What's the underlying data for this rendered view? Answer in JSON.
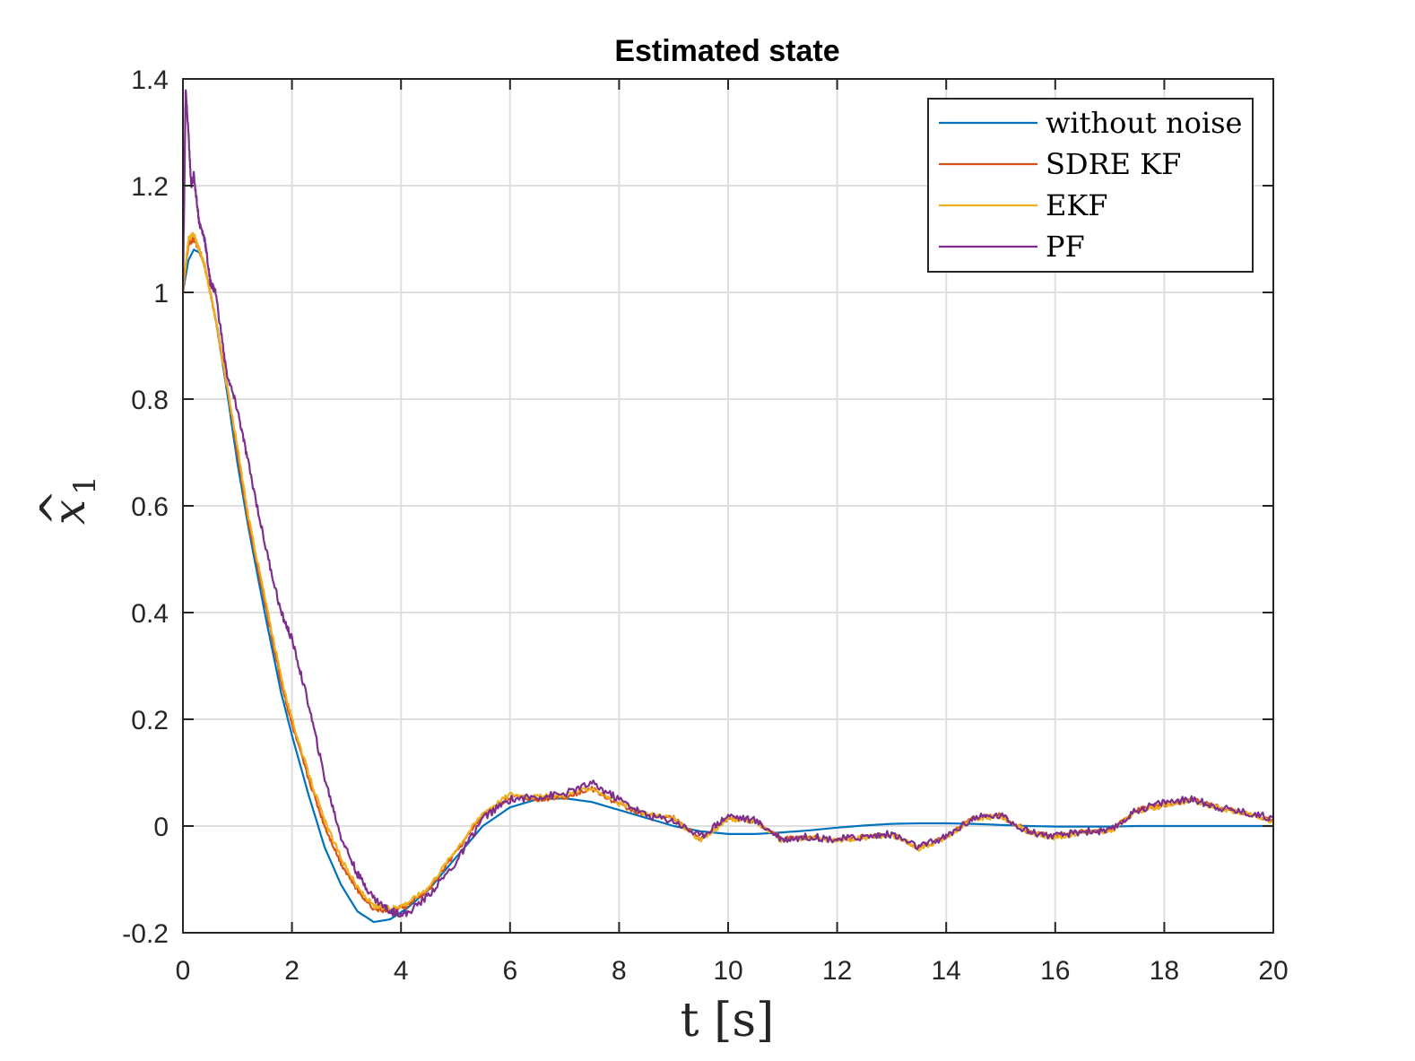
{
  "chart_data": {
    "type": "line",
    "title": "Estimated state",
    "xlabel": "t [s]",
    "ylabel_main": "x",
    "ylabel_hat": "^",
    "ylabel_sub": "1",
    "xlim": [
      0,
      20
    ],
    "ylim": [
      -0.2,
      1.4
    ],
    "xticks": [
      "0",
      "2",
      "4",
      "6",
      "8",
      "10",
      "12",
      "14",
      "16",
      "18",
      "20"
    ],
    "yticks": [
      "-0.2",
      "0",
      "0.2",
      "0.4",
      "0.6",
      "0.8",
      "1",
      "1.2",
      "1.4"
    ],
    "grid": true,
    "legend_position": "top-right",
    "series": [
      {
        "name": "without noise",
        "color": "#0072BD",
        "x": [
          0,
          0.1,
          0.2,
          0.3,
          0.4,
          0.5,
          0.6,
          0.8,
          1.0,
          1.2,
          1.5,
          1.8,
          2.0,
          2.3,
          2.6,
          2.9,
          3.2,
          3.5,
          3.8,
          4.1,
          4.5,
          5.0,
          5.5,
          6.0,
          6.5,
          7.0,
          7.5,
          8.0,
          8.5,
          9.0,
          9.5,
          10.0,
          10.5,
          11.0,
          11.5,
          12.0,
          12.5,
          13.0,
          13.5,
          14.0,
          14.5,
          15.0,
          15.5,
          16.0,
          16.5,
          17.0,
          17.5,
          18.0,
          18.5,
          19.0,
          19.5,
          20.0
        ],
        "y": [
          1.0,
          1.06,
          1.08,
          1.075,
          1.05,
          1.0,
          0.95,
          0.82,
          0.68,
          0.56,
          0.4,
          0.25,
          0.17,
          0.06,
          -0.04,
          -0.11,
          -0.16,
          -0.18,
          -0.175,
          -0.155,
          -0.12,
          -0.06,
          0.0,
          0.035,
          0.05,
          0.052,
          0.045,
          0.03,
          0.015,
          0.0,
          -0.01,
          -0.015,
          -0.015,
          -0.012,
          -0.008,
          -0.003,
          0.001,
          0.004,
          0.005,
          0.005,
          0.004,
          0.002,
          0.0,
          -0.001,
          -0.001,
          -0.001,
          0.0,
          0.0,
          0.0,
          0.0,
          0.0,
          0.0
        ]
      },
      {
        "name": "SDRE KF",
        "color": "#D95319",
        "x": [
          0,
          0.1,
          0.2,
          0.3,
          0.4,
          0.5,
          0.6,
          0.8,
          1.0,
          1.2,
          1.5,
          1.8,
          2.0,
          2.3,
          2.6,
          2.9,
          3.2,
          3.5,
          3.8,
          4.1,
          4.5,
          5.0,
          5.5,
          6.0,
          6.5,
          7.0,
          7.5,
          8.0,
          8.5,
          9.0,
          9.5,
          10.0,
          10.5,
          11.0,
          11.5,
          12.0,
          12.5,
          13.0,
          13.5,
          14.0,
          14.5,
          15.0,
          15.5,
          16.0,
          16.5,
          17.0,
          17.5,
          18.0,
          18.5,
          19.0,
          19.5,
          20.0
        ],
        "y": [
          1.0,
          1.09,
          1.1,
          1.08,
          1.05,
          1.0,
          0.95,
          0.83,
          0.7,
          0.57,
          0.42,
          0.27,
          0.19,
          0.09,
          0.0,
          -0.07,
          -0.12,
          -0.155,
          -0.16,
          -0.15,
          -0.12,
          -0.05,
          0.02,
          0.055,
          0.05,
          0.055,
          0.07,
          0.04,
          0.02,
          0.015,
          -0.025,
          0.015,
          0.01,
          -0.025,
          -0.02,
          -0.025,
          -0.02,
          -0.015,
          -0.04,
          -0.02,
          0.015,
          0.02,
          -0.01,
          -0.02,
          -0.01,
          -0.01,
          0.03,
          0.04,
          0.05,
          0.035,
          0.025,
          0.01
        ]
      },
      {
        "name": "EKF",
        "color": "#EDB120",
        "x": [
          0,
          0.1,
          0.2,
          0.3,
          0.4,
          0.5,
          0.6,
          0.8,
          1.0,
          1.2,
          1.5,
          1.8,
          2.0,
          2.3,
          2.6,
          2.9,
          3.2,
          3.5,
          3.8,
          4.1,
          4.5,
          5.0,
          5.5,
          6.0,
          6.5,
          7.0,
          7.5,
          8.0,
          8.5,
          9.0,
          9.5,
          10.0,
          10.5,
          11.0,
          11.5,
          12.0,
          12.5,
          13.0,
          13.5,
          14.0,
          14.5,
          15.0,
          15.5,
          16.0,
          16.5,
          17.0,
          17.5,
          18.0,
          18.5,
          19.0,
          19.5,
          20.0
        ],
        "y": [
          1.0,
          1.1,
          1.11,
          1.08,
          1.05,
          1.0,
          0.95,
          0.83,
          0.71,
          0.58,
          0.43,
          0.28,
          0.2,
          0.1,
          0.01,
          -0.06,
          -0.115,
          -0.15,
          -0.155,
          -0.145,
          -0.115,
          -0.045,
          0.025,
          0.06,
          0.055,
          0.058,
          0.072,
          0.042,
          0.022,
          0.015,
          -0.028,
          0.013,
          0.008,
          -0.028,
          -0.022,
          -0.027,
          -0.022,
          -0.017,
          -0.042,
          -0.022,
          0.013,
          0.018,
          -0.012,
          -0.022,
          -0.012,
          -0.012,
          0.028,
          0.038,
          0.048,
          0.033,
          0.023,
          0.008
        ]
      },
      {
        "name": "PF",
        "color": "#7E2F8E",
        "x": [
          0,
          0.05,
          0.1,
          0.15,
          0.2,
          0.3,
          0.4,
          0.5,
          0.6,
          0.8,
          1.0,
          1.2,
          1.5,
          1.8,
          2.0,
          2.3,
          2.6,
          2.9,
          3.2,
          3.5,
          3.8,
          4.1,
          4.5,
          5.0,
          5.5,
          6.0,
          6.5,
          7.0,
          7.5,
          8.0,
          8.5,
          9.0,
          9.5,
          10.0,
          10.5,
          11.0,
          11.5,
          12.0,
          12.5,
          13.0,
          13.5,
          14.0,
          14.5,
          15.0,
          15.5,
          16.0,
          16.5,
          17.0,
          17.5,
          18.0,
          18.5,
          19.0,
          19.5,
          20.0
        ],
        "y": [
          1.0,
          1.38,
          1.3,
          1.2,
          1.22,
          1.13,
          1.1,
          1.02,
          1.0,
          0.85,
          0.78,
          0.68,
          0.53,
          0.4,
          0.35,
          0.23,
          0.09,
          -0.02,
          -0.09,
          -0.135,
          -0.16,
          -0.165,
          -0.13,
          -0.07,
          0.015,
          0.05,
          0.055,
          0.06,
          0.08,
          0.05,
          0.02,
          0.01,
          -0.02,
          0.02,
          0.01,
          -0.025,
          -0.02,
          -0.025,
          -0.02,
          -0.015,
          -0.04,
          -0.02,
          0.015,
          0.02,
          -0.01,
          -0.02,
          -0.01,
          -0.01,
          0.03,
          0.045,
          0.05,
          0.035,
          0.025,
          0.015
        ]
      }
    ]
  }
}
